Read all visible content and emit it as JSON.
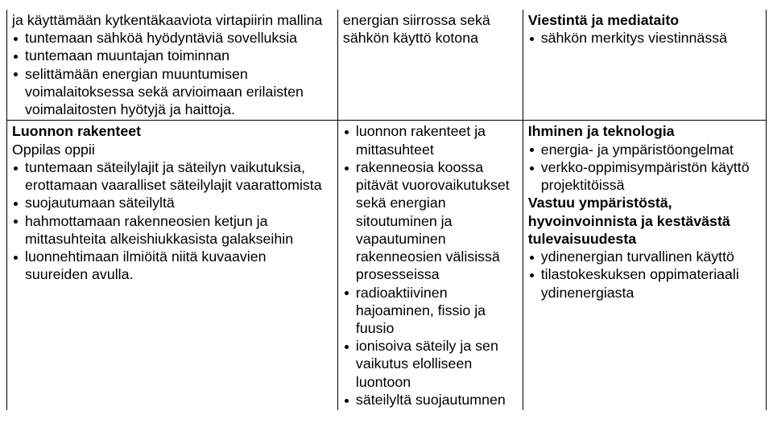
{
  "r1c1": {
    "lead": "ja käyttämään kytkentäkaaviota virtapiirin mallina",
    "items": [
      "tuntemaan sähköä hyödyntäviä sovelluksia",
      "tuntemaan muuntajan toiminnan",
      "selittämään energian muuntumisen voimalaitoksessa sekä arvioimaan erilaisten voimalaitosten hyötyjä ja haittoja."
    ]
  },
  "r1c2": {
    "lead": "energian siirrossa sekä sähkön käyttö kotona"
  },
  "r1c3": {
    "heading": "Viestintä ja mediataito",
    "items": [
      "sähkön merkitys viestinnässä"
    ]
  },
  "r2c1": {
    "heading1": "Luonnon rakenteet",
    "heading2": "Oppilas oppii",
    "items": [
      "tuntemaan säteilylajit ja säteilyn vaikutuksia, erottamaan vaaralliset säteilylajit vaarattomista",
      "suojautumaan säteilyltä",
      "hahmottamaan rakenneosien ketjun ja mittasuhteita alkeishiukkasista galakseihin",
      "luonnehtimaan ilmiöitä niitä kuvaavien suureiden avulla."
    ]
  },
  "r2c2": {
    "items": [
      "luonnon rakenteet ja mittasuhteet",
      "rakenneosia koossa pitävät vuorovaikutukset sekä energian sitoutuminen ja vapautuminen rakenneosien välisissä prosesseissa",
      "radioaktiivinen hajoaminen, fissio ja fuusio",
      "ionisoiva säteily ja sen vaikutus elolliseen luontoon",
      "säteilyltä suojautumnen"
    ]
  },
  "r2c3": {
    "heading1": "Ihminen ja teknologia",
    "items1": [
      "energia- ja ympäristöongelmat",
      "verkko-oppimisympäristön käyttö projektitöissä"
    ],
    "heading2": "Vastuu ympäristöstä, hyvoinvoinnista ja kestävästä tulevaisuudesta",
    "items2": [
      "ydinenergian turvallinen käyttö",
      "tilastokeskuksen oppimateriaali ydinenergiasta"
    ]
  }
}
